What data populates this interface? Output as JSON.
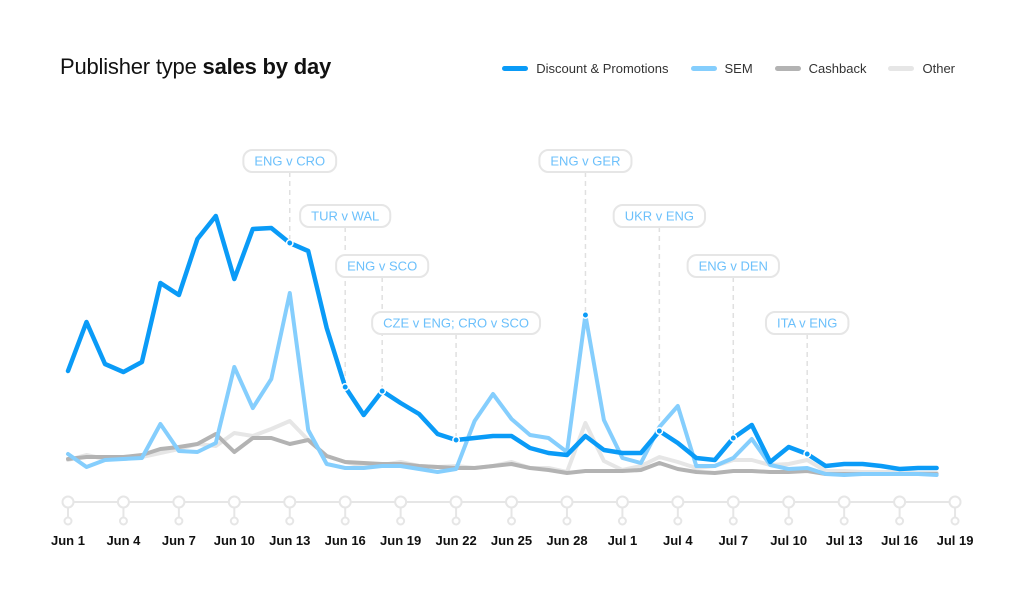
{
  "chart_data": {
    "type": "line",
    "title_regular": "Publisher type",
    "title_bold": "sales by day",
    "xlabel": "",
    "ylabel": "",
    "ylim": [
      0,
      270
    ],
    "grid": false,
    "legend_position": "top-right",
    "x": [
      "Jun 1",
      "Jun 2",
      "Jun 3",
      "Jun 4",
      "Jun 5",
      "Jun 6",
      "Jun 7",
      "Jun 8",
      "Jun 9",
      "Jun 10",
      "Jun 11",
      "Jun 12",
      "Jun 13",
      "Jun 14",
      "Jun 15",
      "Jun 16",
      "Jun 17",
      "Jun 18",
      "Jun 19",
      "Jun 20",
      "Jun 21",
      "Jun 22",
      "Jun 23",
      "Jun 24",
      "Jun 25",
      "Jun 26",
      "Jun 27",
      "Jun 28",
      "Jun 29",
      "Jun 30",
      "Jul 1",
      "Jul 2",
      "Jul 3",
      "Jul 4",
      "Jul 5",
      "Jul 6",
      "Jul 7",
      "Jul 8",
      "Jul 9",
      "Jul 10",
      "Jul 11",
      "Jul 12",
      "Jul 13",
      "Jul 14",
      "Jul 15",
      "Jul 16",
      "Jul 17",
      "Jul 18"
    ],
    "tick_labels": [
      "Jun 1",
      "Jun 4",
      "Jun 7",
      "Jun 10",
      "Jun 13",
      "Jun 16",
      "Jun 19",
      "Jun 22",
      "Jun 25",
      "Jun 28",
      "Jul 1",
      "Jul 4",
      "Jul 7",
      "Jul 10",
      "Jul 13",
      "Jul 16",
      "Jul 19"
    ],
    "series": [
      {
        "name": "Discount & Promotions",
        "color": "#0a9bf7",
        "values": [
          109,
          158,
          116,
          108,
          118,
          197,
          185,
          241,
          264,
          201,
          251,
          252,
          237,
          229,
          152,
          93,
          65,
          89,
          77,
          66,
          46,
          40,
          42,
          44,
          44,
          32,
          27,
          25,
          44,
          30,
          27,
          27,
          49,
          37,
          22,
          20,
          42,
          55,
          18,
          33,
          26,
          14,
          16,
          16,
          14,
          11,
          12,
          12
        ]
      },
      {
        "name": "SEM",
        "color": "#85cefd",
        "values": [
          26,
          13,
          20,
          21,
          22,
          56,
          29,
          28,
          37,
          113,
          72,
          101,
          187,
          50,
          16,
          12,
          12,
          14,
          14,
          11,
          8,
          11,
          59,
          86,
          61,
          45,
          42,
          28,
          165,
          60,
          22,
          17,
          53,
          74,
          14,
          14,
          22,
          41,
          15,
          11,
          12,
          6,
          5,
          6,
          6,
          6,
          6,
          5
        ]
      },
      {
        "name": "Cashback",
        "color": "#b3b3b3",
        "values": [
          21,
          23,
          23,
          23,
          25,
          31,
          33,
          36,
          46,
          28,
          42,
          42,
          36,
          40,
          24,
          18,
          17,
          16,
          16,
          14,
          13,
          12,
          12,
          14,
          16,
          12,
          10,
          7,
          9,
          9,
          9,
          10,
          17,
          11,
          8,
          7,
          9,
          9,
          8,
          8,
          9,
          6,
          6,
          6,
          6,
          6,
          6,
          6
        ]
      },
      {
        "name": "Other",
        "color": "#e6e6e6",
        "values": [
          20,
          25,
          21,
          21,
          23,
          27,
          31,
          36,
          34,
          47,
          44,
          51,
          59,
          40,
          24,
          18,
          14,
          15,
          18,
          14,
          13,
          14,
          12,
          14,
          18,
          12,
          12,
          8,
          57,
          19,
          10,
          14,
          23,
          18,
          12,
          14,
          20,
          20,
          15,
          16,
          20,
          9,
          9,
          8,
          8,
          8,
          7,
          7
        ]
      }
    ],
    "annotations": [
      {
        "label": "ENG v CRO",
        "date": "Jun 13",
        "series": "Discount & Promotions"
      },
      {
        "label": "TUR v WAL",
        "date": "Jun 16",
        "series": "Discount & Promotions"
      },
      {
        "label": "ENG v SCO",
        "date": "Jun 18",
        "series": "Discount & Promotions"
      },
      {
        "label": "CZE v ENG; CRO v SCO",
        "date": "Jun 22",
        "series": "Discount & Promotions"
      },
      {
        "label": "ENG v GER",
        "date": "Jun 29",
        "series": "SEM"
      },
      {
        "label": "UKR v ENG",
        "date": "Jul 3",
        "series": "Discount & Promotions"
      },
      {
        "label": "ENG v DEN",
        "date": "Jul 7",
        "series": "Discount & Promotions"
      },
      {
        "label": "ITA v ENG",
        "date": "Jul 11",
        "series": "Discount & Promotions"
      }
    ]
  }
}
